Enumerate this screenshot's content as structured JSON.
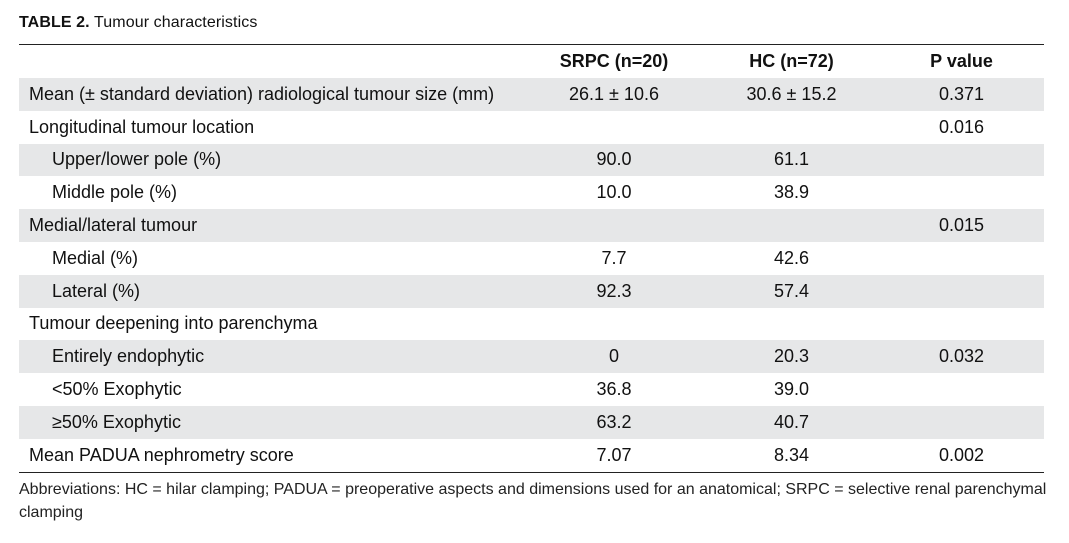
{
  "caption": {
    "label": "TABLE 2.",
    "title": "Tumour characteristics"
  },
  "table": {
    "headers": [
      "",
      "SRPC (n=20)",
      "HC (n=72)",
      "P value"
    ],
    "rows": [
      {
        "label": "Mean (± standard deviation) radiological tumour size (mm)",
        "srpc": "26.1 ± 10.6",
        "hc": "30.6 ± 15.2",
        "p": "0.371"
      },
      {
        "label": "Longitudinal tumour location",
        "srpc": "",
        "hc": "",
        "p": "0.016"
      },
      {
        "label": "Upper/lower pole (%)",
        "srpc": "90.0",
        "hc": "61.1",
        "p": ""
      },
      {
        "label": "Middle pole (%)",
        "srpc": "10.0",
        "hc": "38.9",
        "p": ""
      },
      {
        "label": "Medial/lateral tumour",
        "srpc": "",
        "hc": "",
        "p": "0.015"
      },
      {
        "label": "Medial (%)",
        "srpc": "7.7",
        "hc": "42.6",
        "p": ""
      },
      {
        "label": "Lateral (%)",
        "srpc": "92.3",
        "hc": "57.4",
        "p": ""
      },
      {
        "label": "Tumour deepening into parenchyma",
        "srpc": "",
        "hc": "",
        "p": ""
      },
      {
        "label": "Entirely endophytic",
        "srpc": "0",
        "hc": "20.3",
        "p": "0.032"
      },
      {
        "label": "<50% Exophytic",
        "srpc": "36.8",
        "hc": "39.0",
        "p": ""
      },
      {
        "label": "≥50% Exophytic",
        "srpc": "63.2",
        "hc": "40.7",
        "p": ""
      },
      {
        "label": "Mean PADUA nephrometry score",
        "srpc": "7.07",
        "hc": "8.34",
        "p": "0.002"
      }
    ]
  },
  "footnote": "Abbreviations: HC = hilar clamping; PADUA = preoperative aspects and dimensions used for an anatomical; SRPC = selective renal parenchymal clamping",
  "colors": {
    "row_shade": "#e6e7e8",
    "rule": "#222222"
  }
}
